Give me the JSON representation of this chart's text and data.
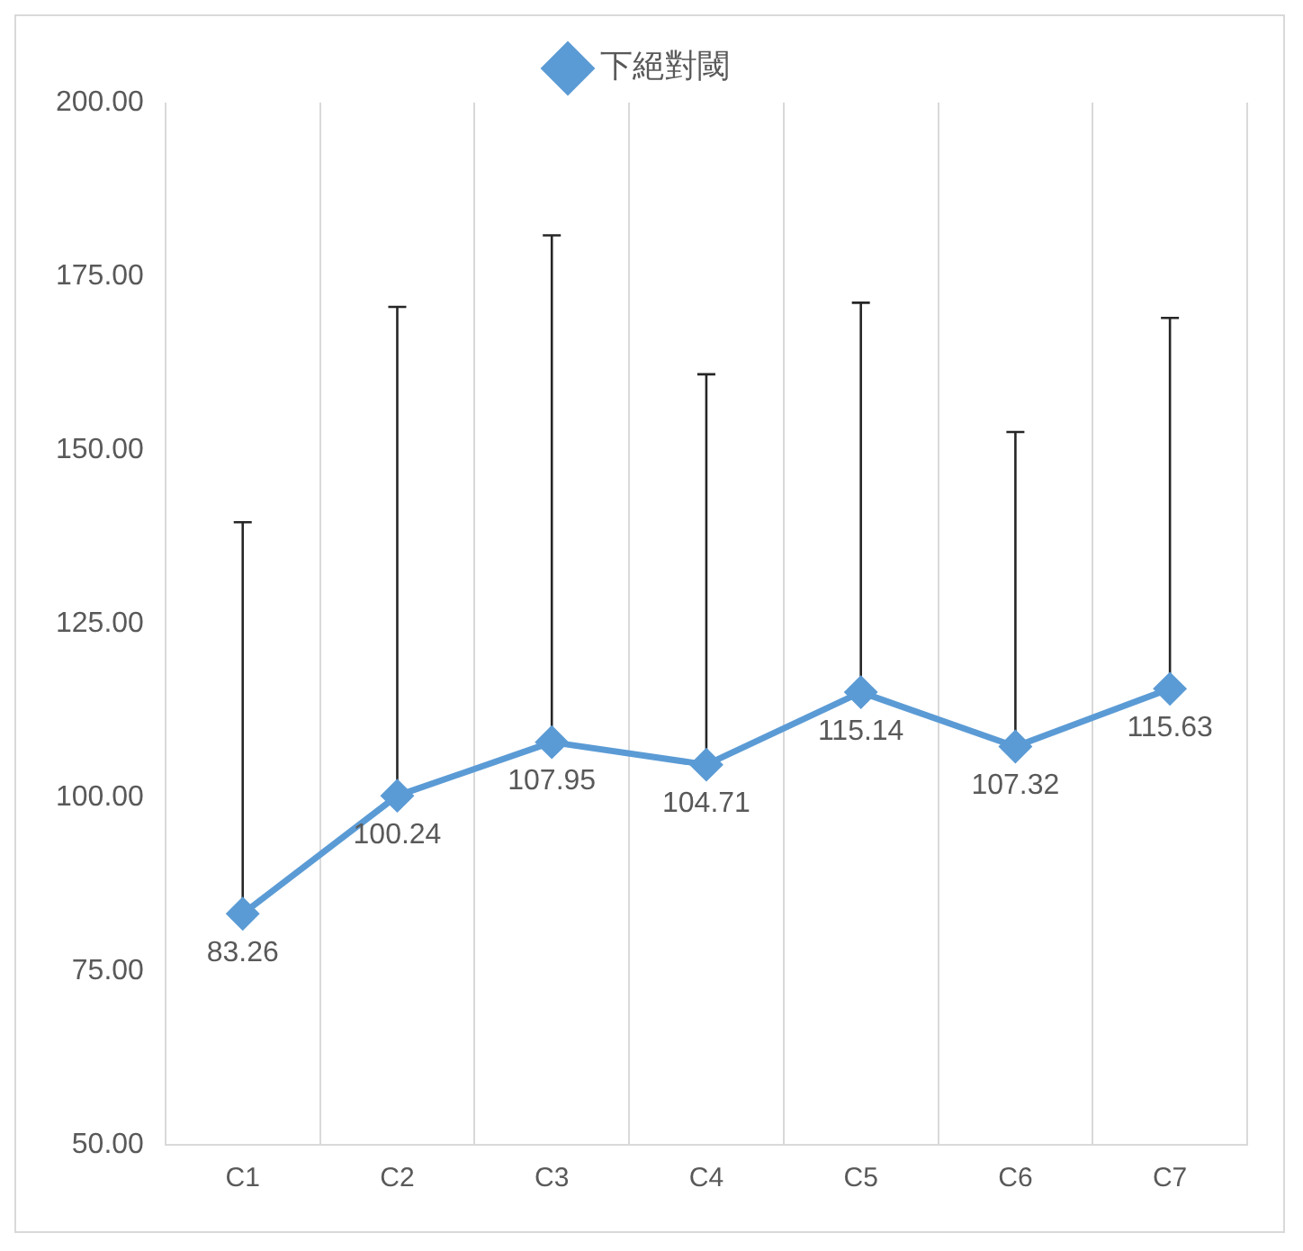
{
  "chart_data": {
    "type": "line",
    "categories": [
      "C1",
      "C2",
      "C3",
      "C4",
      "C5",
      "C6",
      "C7"
    ],
    "series": [
      {
        "name": "下絕對閾",
        "color": "#5b9bd5",
        "values": [
          83.26,
          100.24,
          107.95,
          104.71,
          115.14,
          107.32,
          115.63
        ],
        "errors": [
          [
            83.26,
            139.6
          ],
          [
            100.24,
            170.6
          ],
          [
            107.95,
            180.9
          ],
          [
            104.71,
            160.9
          ],
          [
            115.14,
            171.2
          ],
          [
            107.32,
            152.6
          ],
          [
            115.63,
            169.0
          ]
        ]
      }
    ],
    "ylim": [
      50,
      200
    ],
    "yticks": [
      {
        "value": 50,
        "label": "50.00"
      },
      {
        "value": 75,
        "label": "75.00"
      },
      {
        "value": 100,
        "label": "100.00"
      },
      {
        "value": 125,
        "label": "125.00"
      },
      {
        "value": 150,
        "label": "150.00"
      },
      {
        "value": 175,
        "label": "175.00"
      },
      {
        "value": 200,
        "label": "200.00"
      }
    ],
    "grid": "x",
    "legend": "top",
    "marker": "diamond",
    "line_style": "solid",
    "data_labels": true
  }
}
